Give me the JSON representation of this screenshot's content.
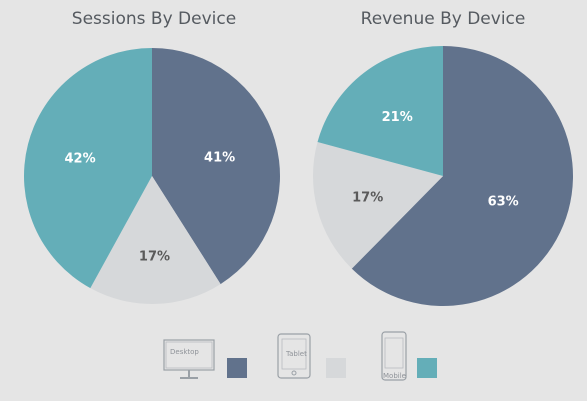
{
  "chart_data": [
    {
      "type": "pie",
      "title": "Sessions By Device",
      "categories": [
        "Desktop",
        "Tablet",
        "Mobile"
      ],
      "values": [
        41,
        17,
        42
      ],
      "labels": [
        "41%",
        "17%",
        "42%"
      ]
    },
    {
      "type": "pie",
      "title": "Revenue By Device",
      "categories": [
        "Desktop",
        "Tablet",
        "Mobile"
      ],
      "values": [
        63,
        17,
        21
      ],
      "labels": [
        "63%",
        "17%",
        "21%"
      ]
    }
  ],
  "colors": {
    "Desktop": "#61728c",
    "Tablet": "#d6d8da",
    "Mobile": "#64aeb8",
    "label_on_dark": "#ffffff",
    "label_on_light": "#5a5a5a"
  },
  "legend": {
    "placement": "bottom",
    "items": [
      {
        "name": "Desktop",
        "icon": "desktop-monitor-icon"
      },
      {
        "name": "Tablet",
        "icon": "tablet-icon"
      },
      {
        "name": "Mobile",
        "icon": "mobile-phone-icon"
      }
    ]
  }
}
